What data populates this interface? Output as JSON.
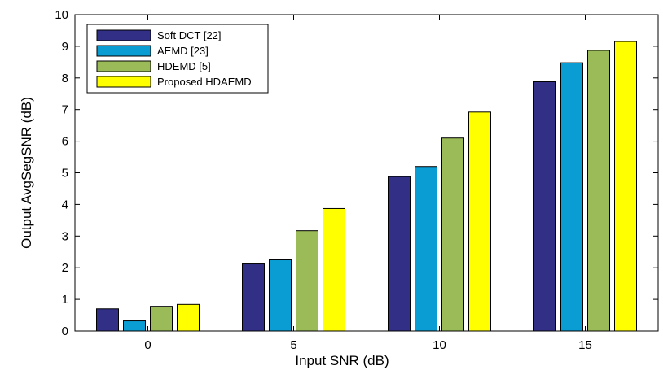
{
  "chart_data": {
    "type": "bar",
    "title": "",
    "xlabel": "Input SNR (dB)",
    "ylabel": "Output AvgSegSNR (dB)",
    "categories": [
      "0",
      "5",
      "10",
      "15"
    ],
    "ylim": [
      0,
      10
    ],
    "yticks": [
      "0",
      "1",
      "2",
      "3",
      "4",
      "5",
      "6",
      "7",
      "8",
      "9",
      "10"
    ],
    "grid": false,
    "legend_position": "top-left",
    "series": [
      {
        "name": "Soft DCT [22]",
        "color": "#322f86",
        "values": [
          0.7,
          2.12,
          4.88,
          7.88
        ]
      },
      {
        "name": "AEMD [23]",
        "color": "#0a9dd4",
        "values": [
          0.32,
          2.25,
          5.2,
          8.48
        ]
      },
      {
        "name": "HDEMD [5]",
        "color": "#9bbb59",
        "values": [
          0.78,
          3.17,
          6.1,
          8.87
        ]
      },
      {
        "name": "Proposed HDAEMD",
        "color": "#ffff00",
        "values": [
          0.84,
          3.87,
          6.92,
          9.15
        ]
      }
    ]
  }
}
